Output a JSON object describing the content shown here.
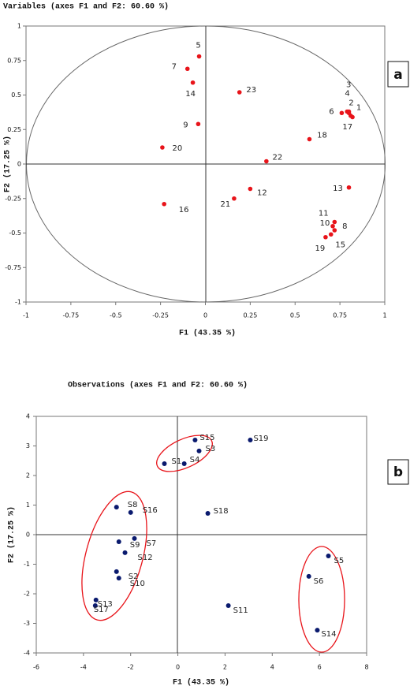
{
  "chart_data": [
    {
      "type": "scatter",
      "title": "Variables (axes F1 and F2: 60.60 %)",
      "x_label": "F1 (43.35 %)",
      "y_label": "F2 (17.25 %)",
      "panel_label": "a",
      "color": "#e8141a",
      "labels": [
        "5",
        "7",
        "14",
        "23",
        "9",
        "20",
        "1",
        "2",
        "3",
        "4",
        "6",
        "17",
        "18",
        "22",
        "13",
        "12",
        "21",
        "16",
        "11",
        "10",
        "8",
        "15",
        "19"
      ],
      "x": [
        -0.035,
        -0.1,
        -0.07,
        0.19,
        -0.04,
        -0.24,
        0.82,
        0.8,
        0.79,
        0.8,
        0.76,
        0.81,
        0.58,
        0.34,
        0.8,
        0.25,
        0.16,
        -0.23,
        0.72,
        0.71,
        0.72,
        0.7,
        0.67
      ],
      "y": [
        0.78,
        0.69,
        0.59,
        0.52,
        0.29,
        0.12,
        0.34,
        0.37,
        0.38,
        0.38,
        0.37,
        0.35,
        0.18,
        0.02,
        -0.17,
        -0.18,
        -0.25,
        -0.29,
        -0.42,
        -0.45,
        -0.48,
        -0.51,
        -0.53
      ],
      "xlim": [
        -1,
        1
      ],
      "ylim": [
        -1,
        1
      ],
      "xticks": [
        -1,
        -0.75,
        -0.5,
        -0.25,
        0,
        0.25,
        0.5,
        0.75,
        1
      ],
      "yticks": [
        -1,
        -0.75,
        -0.5,
        -0.25,
        0,
        0.25,
        0.5,
        0.75,
        1
      ]
    },
    {
      "type": "scatter",
      "title": "Observations (axes F1 and F2: 60.60 %)",
      "x_label": "F1 (43.35 %)",
      "y_label": "F2 (17.25 %)",
      "panel_label": "b",
      "color": "#0a1a6e",
      "labels": [
        "S15",
        "S3",
        "S19",
        "S1",
        "S4",
        "S8",
        "S16",
        "S18",
        "S9",
        "S7",
        "S12",
        "S2",
        "S10",
        "S5",
        "S6",
        "S13",
        "S17",
        "S11",
        "S14"
      ],
      "x": [
        0.73,
        0.9,
        3.07,
        -0.57,
        0.27,
        -2.6,
        -2.0,
        1.27,
        -2.5,
        -1.84,
        -2.24,
        -2.6,
        -2.5,
        6.38,
        5.55,
        -3.47,
        -3.5,
        2.14,
        5.91
      ],
      "y": [
        3.2,
        2.83,
        3.2,
        2.4,
        2.4,
        0.93,
        0.75,
        0.72,
        -0.24,
        -0.13,
        -0.61,
        -1.25,
        -1.47,
        -0.72,
        -1.41,
        -2.21,
        -2.4,
        -2.4,
        -3.23
      ],
      "xlim": [
        -6,
        8
      ],
      "ylim": [
        -4,
        4
      ],
      "xticks": [
        -6,
        -4,
        -2,
        0,
        2,
        4,
        6,
        8
      ],
      "yticks": [
        -4,
        -3,
        -2,
        -1,
        0,
        1,
        2,
        3,
        4
      ]
    }
  ]
}
